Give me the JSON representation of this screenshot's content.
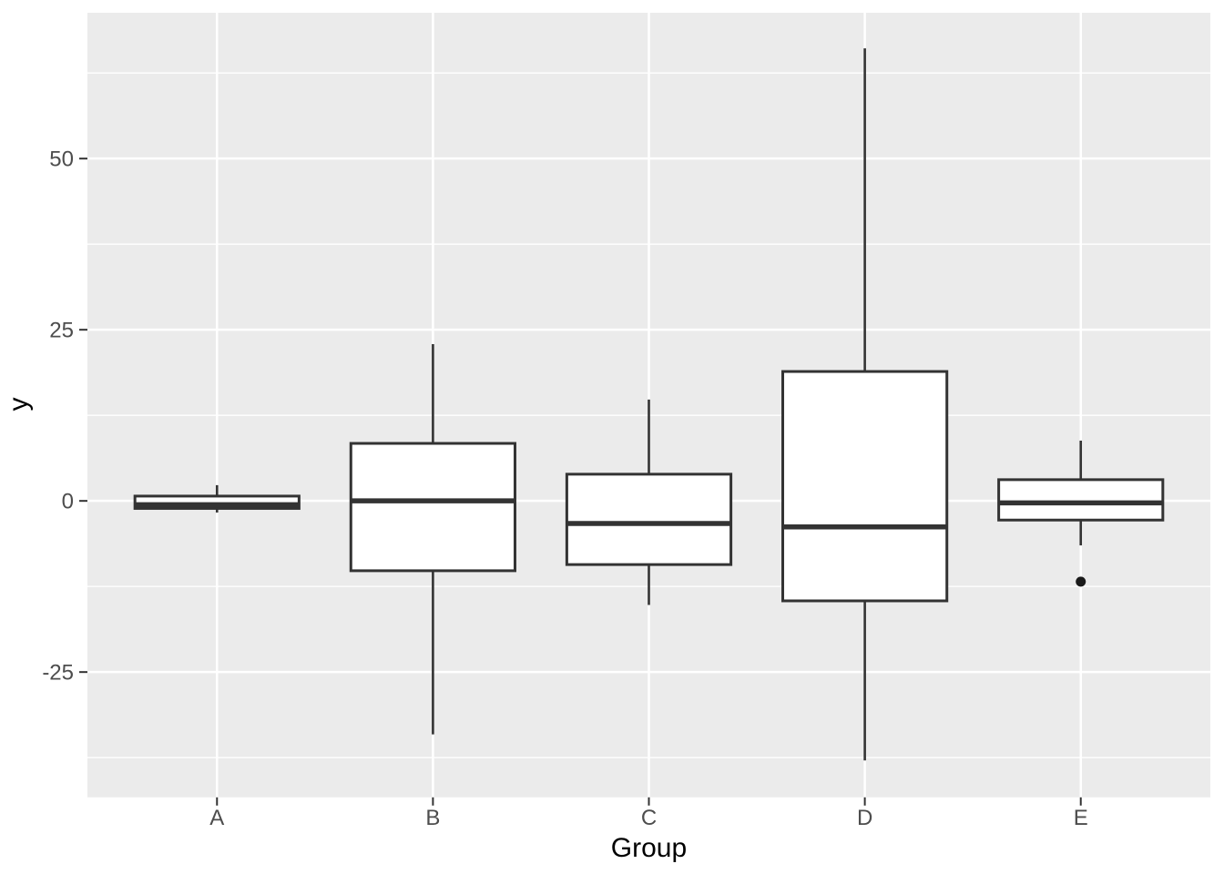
{
  "chart_data": {
    "type": "boxplot",
    "title": "",
    "xlabel": "Group",
    "ylabel": "y",
    "categories": [
      "A",
      "B",
      "C",
      "D",
      "E"
    ],
    "series": [
      {
        "category": "A",
        "whisker_low": -1.7,
        "q1": -1.1,
        "median": -0.55,
        "q3": 0.7,
        "whisker_high": 2.3,
        "outliers": []
      },
      {
        "category": "B",
        "whisker_low": -34.1,
        "q1": -10.2,
        "median": 0.0,
        "q3": 8.4,
        "whisker_high": 22.9,
        "outliers": []
      },
      {
        "category": "C",
        "whisker_low": -15.2,
        "q1": -9.3,
        "median": -3.3,
        "q3": 3.9,
        "whisker_high": 14.8,
        "outliers": []
      },
      {
        "category": "D",
        "whisker_low": -37.9,
        "q1": -14.6,
        "median": -3.8,
        "q3": 18.9,
        "whisker_high": 66.1,
        "outliers": []
      },
      {
        "category": "E",
        "whisker_low": -6.5,
        "q1": -2.8,
        "median": -0.3,
        "q3": 3.1,
        "whisker_high": 8.8,
        "outliers": [
          -11.8
        ]
      }
    ],
    "y_ticks": [
      -25,
      0,
      25,
      50
    ],
    "y_tick_labels": [
      "-25",
      "0",
      "25",
      "50"
    ],
    "y_minor_gridlines": [
      -37.5,
      -12.5,
      12.5,
      37.5,
      62.5
    ],
    "ylim": [
      -43.3,
      71.3
    ],
    "grid": "on",
    "legend_position": "none",
    "style": {
      "panel_bg": "#EBEBEB",
      "grid_color": "#FFFFFF",
      "box_fill": "#FFFFFF",
      "stroke_color": "#333333",
      "outlier_color": "#1A1A1A",
      "axis_tick_color": "#333333",
      "tick_label_color": "#4D4D4D",
      "axis_title_color": "#000000"
    }
  }
}
